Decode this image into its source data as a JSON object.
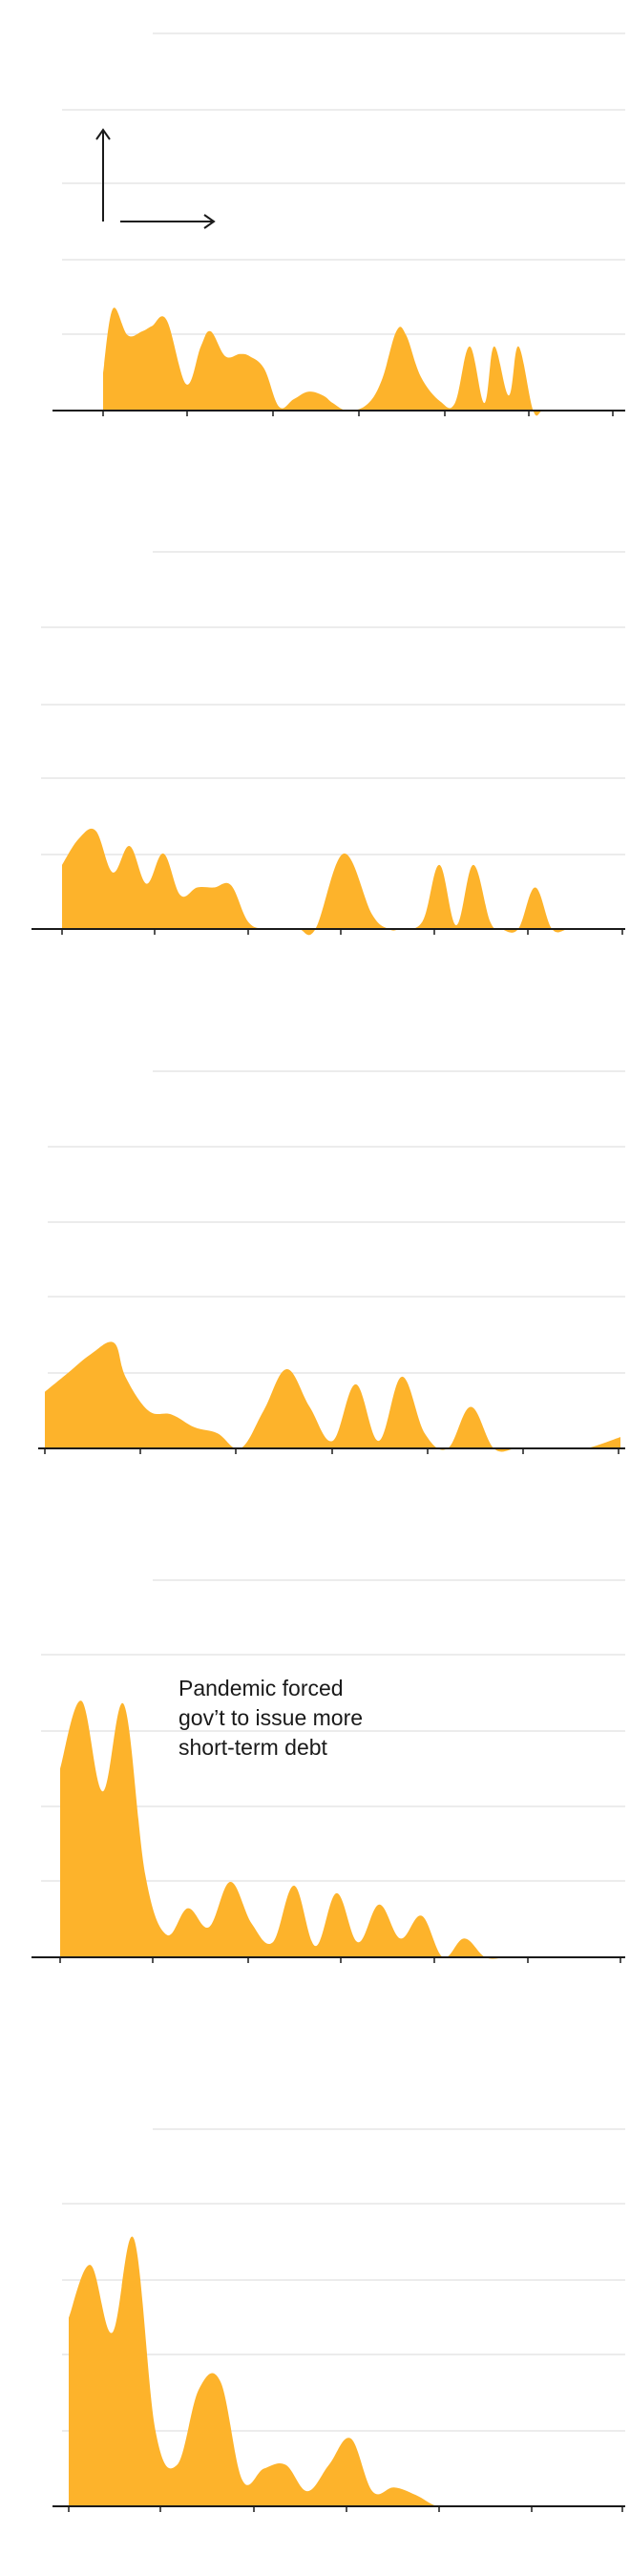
{
  "colors": {
    "area": "#FDB32B",
    "grid": "#d9d9d9",
    "axis": "#1a1a1a",
    "background": "#ffffff"
  },
  "legend_icon": "axes-arrows-icon",
  "annotation": {
    "lines": [
      "Pandemic forced",
      "gov’t to issue more",
      "short-term debt"
    ]
  },
  "chart_data": [
    {
      "type": "area",
      "grid": true,
      "gridlines": 5,
      "x": [
        0,
        0.02,
        0.05,
        0.08,
        0.1,
        0.13,
        0.17,
        0.2,
        0.22,
        0.25,
        0.28,
        0.3,
        0.33,
        0.36,
        0.39,
        0.42,
        0.45,
        0.47,
        0.5,
        0.54,
        0.57,
        0.6,
        0.62,
        0.65,
        0.69,
        0.72,
        0.75,
        0.78,
        0.8,
        0.83,
        0.85,
        0.88,
        0.9,
        0.93,
        0.95,
        1.0
      ],
      "values": [
        0.5,
        1.35,
        1.0,
        1.05,
        1.12,
        1.2,
        0.35,
        0.85,
        1.05,
        0.72,
        0.75,
        0.72,
        0.55,
        0.05,
        0.15,
        0.25,
        0.2,
        0.1,
        0.0,
        0.08,
        0.4,
        1.05,
        1.0,
        0.45,
        0.12,
        0.1,
        0.85,
        0.1,
        0.85,
        0.2,
        0.85,
        0.0,
        0.0,
        0.0,
        0.0,
        0.0
      ],
      "ylim": [
        0,
        5
      ]
    },
    {
      "type": "area",
      "grid": true,
      "gridlines": 5,
      "x": [
        0,
        0.03,
        0.06,
        0.09,
        0.12,
        0.15,
        0.18,
        0.21,
        0.24,
        0.27,
        0.3,
        0.33,
        0.36,
        0.39,
        0.42,
        0.45,
        0.5,
        0.55,
        0.58,
        0.6,
        0.64,
        0.67,
        0.7,
        0.73,
        0.76,
        0.78,
        0.81,
        0.84,
        0.87,
        0.9,
        0.93,
        0.96,
        1.0
      ],
      "values": [
        0.85,
        1.2,
        1.3,
        0.75,
        1.1,
        0.6,
        1.0,
        0.45,
        0.55,
        0.55,
        0.58,
        0.1,
        0.0,
        0.0,
        0.0,
        0.0,
        1.0,
        0.2,
        0.0,
        0.0,
        0.1,
        0.85,
        0.05,
        0.85,
        0.1,
        0.0,
        0.0,
        0.55,
        0.0,
        0.0,
        0.0,
        0.0,
        0.0
      ],
      "ylim": [
        0,
        5
      ]
    },
    {
      "type": "area",
      "grid": true,
      "gridlines": 5,
      "x": [
        0,
        0.04,
        0.08,
        0.12,
        0.14,
        0.18,
        0.22,
        0.26,
        0.3,
        0.34,
        0.38,
        0.42,
        0.46,
        0.5,
        0.54,
        0.58,
        0.62,
        0.66,
        0.7,
        0.74,
        0.78,
        0.82,
        0.86,
        0.9,
        0.94,
        1.0
      ],
      "values": [
        0.75,
        1.0,
        1.25,
        1.4,
        0.95,
        0.5,
        0.45,
        0.28,
        0.2,
        0.0,
        0.5,
        1.05,
        0.55,
        0.1,
        0.85,
        0.1,
        0.95,
        0.2,
        0.0,
        0.55,
        0.0,
        0.0,
        0.0,
        0.0,
        0.0,
        0.15
      ],
      "ylim": [
        0,
        5
      ]
    },
    {
      "type": "area",
      "grid": true,
      "gridlines": 5,
      "x": [
        0,
        0.04,
        0.08,
        0.12,
        0.16,
        0.2,
        0.24,
        0.28,
        0.32,
        0.36,
        0.4,
        0.44,
        0.48,
        0.52,
        0.56,
        0.6,
        0.64,
        0.68,
        0.72,
        0.76,
        0.8,
        0.84,
        0.88,
        0.92,
        0.96,
        1.0
      ],
      "values": [
        2.5,
        3.4,
        2.2,
        3.35,
        1.1,
        0.3,
        0.65,
        0.4,
        1.0,
        0.45,
        0.2,
        0.95,
        0.15,
        0.85,
        0.2,
        0.7,
        0.25,
        0.55,
        0.0,
        0.25,
        0.0,
        0.0,
        0.0,
        0.0,
        0.0,
        0.0
      ],
      "ylim": [
        0,
        5
      ]
    },
    {
      "type": "area",
      "grid": true,
      "gridlines": 5,
      "x": [
        0,
        0.04,
        0.08,
        0.12,
        0.16,
        0.2,
        0.24,
        0.28,
        0.32,
        0.36,
        0.4,
        0.44,
        0.48,
        0.52,
        0.56,
        0.6,
        0.64,
        0.68,
        0.72,
        0.76,
        0.8,
        0.84,
        0.88,
        0.92,
        0.96,
        1.0
      ],
      "values": [
        2.5,
        3.2,
        2.3,
        3.55,
        1.0,
        0.55,
        1.55,
        1.65,
        0.35,
        0.5,
        0.55,
        0.2,
        0.55,
        0.9,
        0.2,
        0.25,
        0.15,
        0.0,
        0.0,
        0.0,
        0.0,
        0.0,
        0.0,
        0.0,
        0.0,
        0.0
      ],
      "ylim": [
        0,
        5
      ]
    }
  ]
}
